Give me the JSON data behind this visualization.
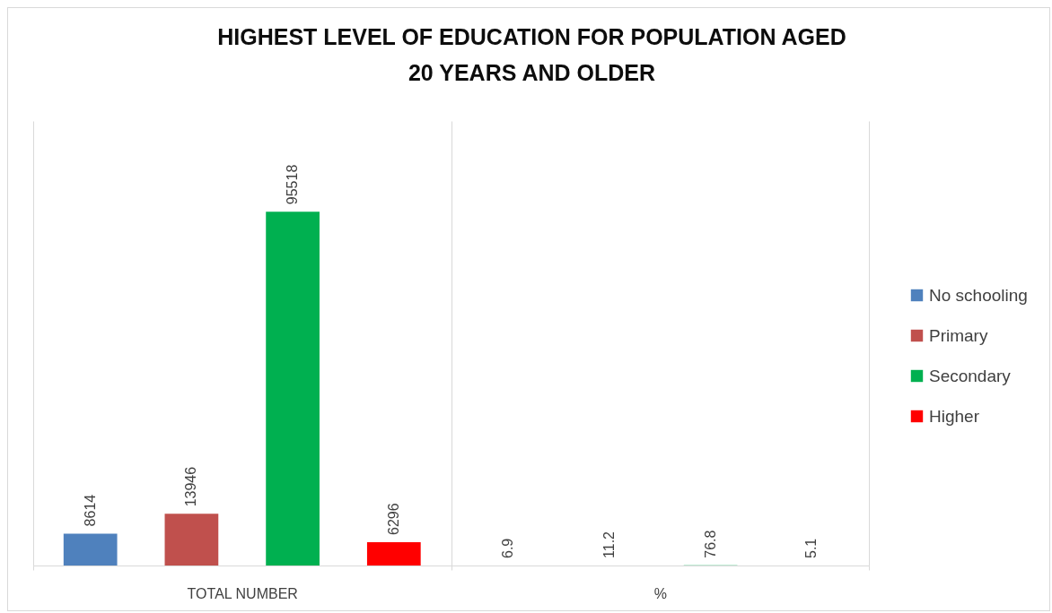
{
  "chart_data": {
    "type": "bar",
    "title": [
      "HIGHEST LEVEL OF EDUCATION FOR POPULATION AGED",
      "20 YEARS AND OLDER"
    ],
    "categories": [
      "TOTAL NUMBER",
      "%"
    ],
    "series": [
      {
        "name": "No schooling",
        "color": "#4f81bd",
        "values": [
          8614,
          6.9
        ]
      },
      {
        "name": "Primary",
        "color": "#c0504d",
        "values": [
          13946,
          11.2
        ]
      },
      {
        "name": "Secondary",
        "color": "#00b050",
        "values": [
          95518,
          76.8
        ]
      },
      {
        "name": "Higher",
        "color": "#ff0000",
        "values": [
          6296,
          5.1
        ]
      }
    ],
    "ylim": [
      0,
      120000
    ],
    "tick_labels": "x",
    "grid": "x",
    "legend": "right",
    "data_labels": true
  }
}
